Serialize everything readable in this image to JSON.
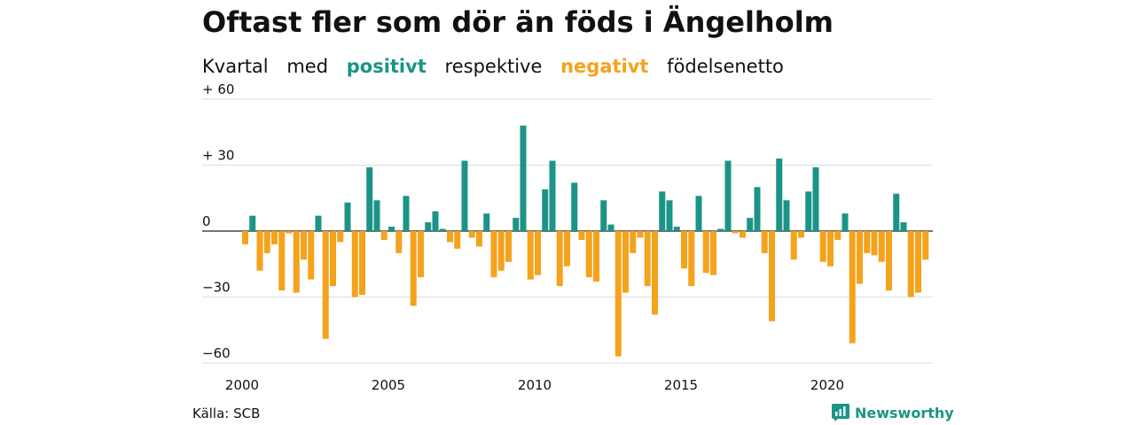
{
  "title": "Oftast fler som dör än föds i Ängelholm",
  "subtitle": {
    "part1": "Kvartal",
    "part2": "med",
    "positive_word": "positivt",
    "part3": "respektive",
    "negative_word": "negativt",
    "part4": "födelsenetto"
  },
  "source": "Källa: SCB",
  "brand": "Newsworthy",
  "colors": {
    "positive": "#1a9486",
    "negative": "#f5a21c",
    "grid": "#dddddd"
  },
  "chart_data": {
    "type": "bar",
    "x_start": 2000,
    "periods_per_year": 4,
    "ylim": [
      -60,
      60
    ],
    "yticks": [
      {
        "value": 60,
        "label": "+ 60"
      },
      {
        "value": 30,
        "label": "+ 30"
      },
      {
        "value": 0,
        "label": "0"
      },
      {
        "value": -30,
        "label": "−30"
      },
      {
        "value": -60,
        "label": "−60"
      }
    ],
    "xticks": [
      {
        "value": 2000,
        "label": "2000"
      },
      {
        "value": 2005,
        "label": "2005"
      },
      {
        "value": 2010,
        "label": "2010"
      },
      {
        "value": 2015,
        "label": "2015"
      },
      {
        "value": 2020,
        "label": "2020"
      }
    ],
    "values": [
      -6,
      7,
      -18,
      -10,
      -6,
      -27,
      -1,
      -28,
      -13,
      -22,
      7,
      -49,
      -25,
      -5,
      13,
      -30,
      -29,
      29,
      14,
      -4,
      2,
      -10,
      16,
      -34,
      -21,
      4,
      9,
      1,
      -5,
      -8,
      32,
      -3,
      -7,
      8,
      -21,
      -18,
      -14,
      6,
      48,
      -22,
      -20,
      19,
      32,
      -25,
      -16,
      22,
      -4,
      -21,
      -23,
      14,
      3,
      -57,
      -28,
      -10,
      -3,
      -25,
      -38,
      18,
      14,
      2,
      -17,
      -25,
      16,
      -19,
      -20,
      1,
      32,
      -1,
      -3,
      6,
      20,
      -10,
      -41,
      33,
      14,
      -13,
      -3,
      18,
      29,
      -14,
      -16,
      -4,
      8,
      -51,
      -24,
      -10,
      -11,
      -14,
      -27,
      17,
      4,
      -30,
      -28,
      -13
    ]
  }
}
